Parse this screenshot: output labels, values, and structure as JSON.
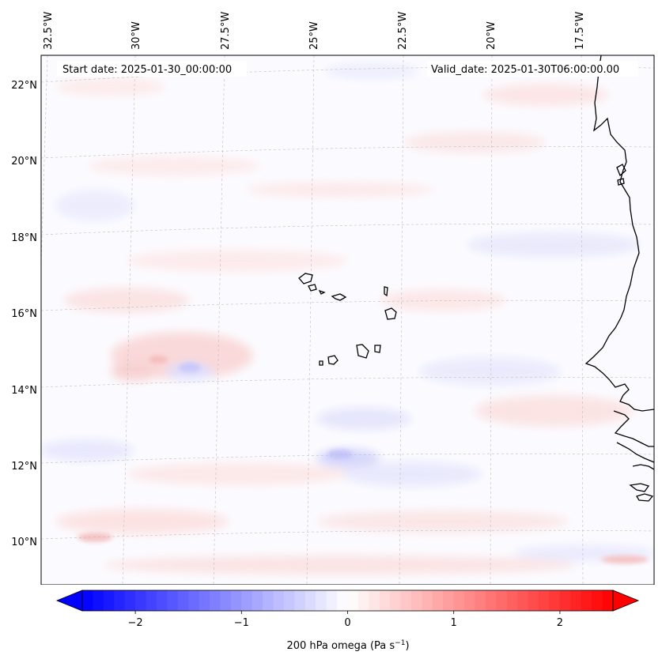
{
  "map": {
    "start_date": "Start date: 2025-01-30_00:00:00",
    "valid_date": "Valid_date: 2025-01-30T06:00:00.00",
    "lon_labels": [
      "32.5°W",
      "30°W",
      "27.5°W",
      "25°W",
      "22.5°W",
      "20°W",
      "17.5°W"
    ],
    "lat_labels": [
      "22°N",
      "20°N",
      "18°N",
      "16°N",
      "14°N",
      "12°N",
      "10°N"
    ],
    "projection": "lambert-conformal",
    "gridlines": true,
    "field": "200 hPa vertical velocity (omega)",
    "features": [
      "West African coastline",
      "Cape Verde islands"
    ]
  },
  "colorbar": {
    "label_main": "200 hPa omega (Pa s",
    "label_sup": "−1",
    "label_end": ")",
    "ticks": [
      "−2",
      "−1",
      "0",
      "1",
      "2"
    ],
    "tick_values": [
      -2,
      -1,
      0,
      1,
      2
    ],
    "vmin": -2.5,
    "vmax": 2.5,
    "colormap": "bwr",
    "low_color": "#0000ff",
    "mid_color": "#ffffff",
    "high_color": "#ff0000",
    "extend": "both"
  }
}
